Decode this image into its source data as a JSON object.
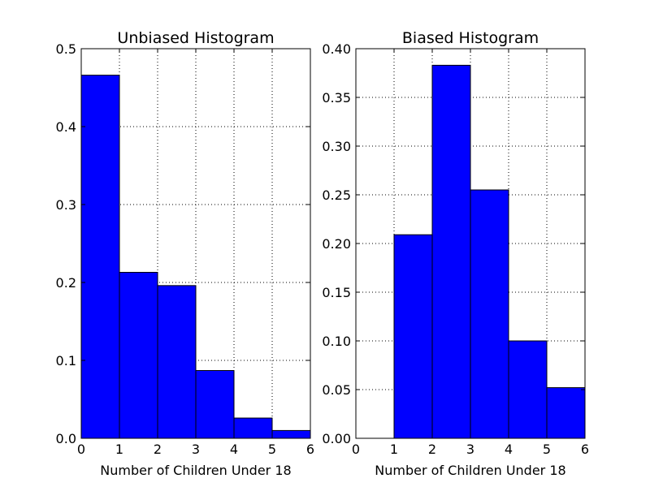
{
  "colors": {
    "bar_fill": "#0000ff",
    "bar_edge": "#000000",
    "grid": "#000000",
    "background": "#ffffff"
  },
  "chart_data": [
    {
      "type": "bar",
      "title": "Unbiased Histogram",
      "xlabel": "Number of Children Under 18",
      "ylabel": "",
      "bins": [
        [
          0,
          1
        ],
        [
          1,
          2
        ],
        [
          2,
          3
        ],
        [
          3,
          4
        ],
        [
          4,
          5
        ],
        [
          5,
          6
        ]
      ],
      "values": [
        0.466,
        0.213,
        0.196,
        0.087,
        0.026,
        0.01
      ],
      "xlim": [
        0,
        6
      ],
      "ylim": [
        0,
        0.5
      ],
      "xticks": [
        "0",
        "1",
        "2",
        "3",
        "4",
        "5",
        "6"
      ],
      "yticks": [
        "0.0",
        "0.1",
        "0.2",
        "0.3",
        "0.4",
        "0.5"
      ],
      "grid": true
    },
    {
      "type": "bar",
      "title": "Biased Histogram",
      "xlabel": "Number of Children Under 18",
      "ylabel": "",
      "bins": [
        [
          0,
          1
        ],
        [
          1,
          2
        ],
        [
          2,
          3
        ],
        [
          3,
          4
        ],
        [
          4,
          5
        ],
        [
          5,
          6
        ]
      ],
      "values": [
        0.0,
        0.209,
        0.383,
        0.255,
        0.1,
        0.052
      ],
      "xlim": [
        0,
        6
      ],
      "ylim": [
        0,
        0.4
      ],
      "xticks": [
        "0",
        "1",
        "2",
        "3",
        "4",
        "5",
        "6"
      ],
      "yticks": [
        "0.00",
        "0.05",
        "0.10",
        "0.15",
        "0.20",
        "0.25",
        "0.30",
        "0.35",
        "0.40"
      ],
      "grid": true
    }
  ]
}
